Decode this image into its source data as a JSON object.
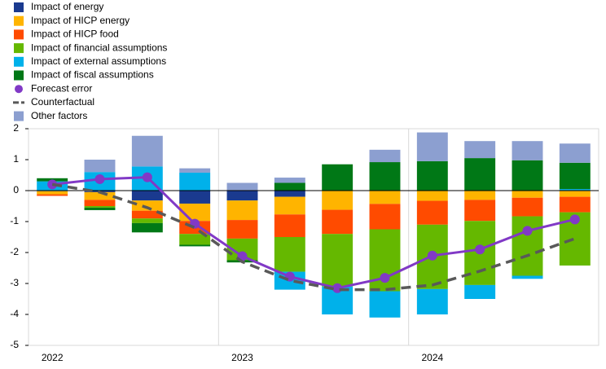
{
  "chart_data": {
    "type": "bar",
    "categories": [
      "2022",
      null,
      null,
      null,
      "2023",
      null,
      null,
      null,
      "2024",
      null,
      null,
      null
    ],
    "ylim": [
      -5,
      2
    ],
    "yticks": [
      2,
      1,
      0,
      -1,
      -2,
      -3,
      -4,
      -5
    ],
    "series": [
      {
        "name": "Impact of energy",
        "color": "#1a3a8f",
        "values": [
          -0.02,
          -0.05,
          -0.32,
          -0.42,
          -0.32,
          -0.2,
          0,
          0,
          0,
          0,
          0,
          0
        ]
      },
      {
        "name": "Impact of HICP energy",
        "color": "#ffb400",
        "values": [
          -0.1,
          -0.25,
          -0.33,
          -0.56,
          -0.63,
          -0.57,
          -0.62,
          -0.43,
          -0.33,
          -0.3,
          -0.23,
          -0.2
        ]
      },
      {
        "name": "Impact of HICP food",
        "color": "#ff4b00",
        "values": [
          -0.05,
          -0.2,
          -0.25,
          -0.42,
          -0.6,
          -0.73,
          -0.78,
          -0.82,
          -0.77,
          -0.68,
          -0.6,
          -0.5
        ]
      },
      {
        "name": "Impact of financial assumptions",
        "color": "#65b800",
        "values": [
          0,
          -0.05,
          -0.15,
          -0.35,
          -0.7,
          -1.12,
          -1.7,
          -2.0,
          -2.08,
          -2.07,
          -1.92,
          -1.72
        ]
      },
      {
        "name": "Impact of external assumptions",
        "color": "#00b1ea",
        "values": [
          0.3,
          0.6,
          0.78,
          0.58,
          0,
          -0.58,
          -0.9,
          -0.85,
          -0.82,
          -0.45,
          -0.1,
          0.05
        ]
      },
      {
        "name": "Impact of fiscal assumptions",
        "color": "#007816",
        "values": [
          0.1,
          -0.08,
          -0.3,
          -0.05,
          -0.07,
          0.25,
          0.85,
          0.92,
          0.95,
          1.05,
          0.98,
          0.85
        ]
      },
      {
        "name": "Forecast error",
        "color": "#8139c6",
        "kind": "line-markers",
        "values": [
          0.2,
          0.37,
          0.43,
          -1.07,
          -2.12,
          -2.78,
          -3.15,
          -2.82,
          -2.1,
          -1.9,
          -1.3,
          -0.93
        ]
      },
      {
        "name": "Counterfactual",
        "color": "#595959",
        "kind": "dashed-line",
        "values": [
          0.2,
          -0.05,
          -0.55,
          -1.2,
          -2.3,
          -2.9,
          -3.2,
          -3.2,
          -3.05,
          -2.6,
          -2.1,
          -1.55
        ]
      },
      {
        "name": "Other factors",
        "color": "#8c9fd0",
        "values": [
          0,
          0.4,
          0.99,
          0.14,
          0.25,
          0.17,
          0,
          0.4,
          0.93,
          0.55,
          0.62,
          0.62
        ]
      }
    ]
  }
}
